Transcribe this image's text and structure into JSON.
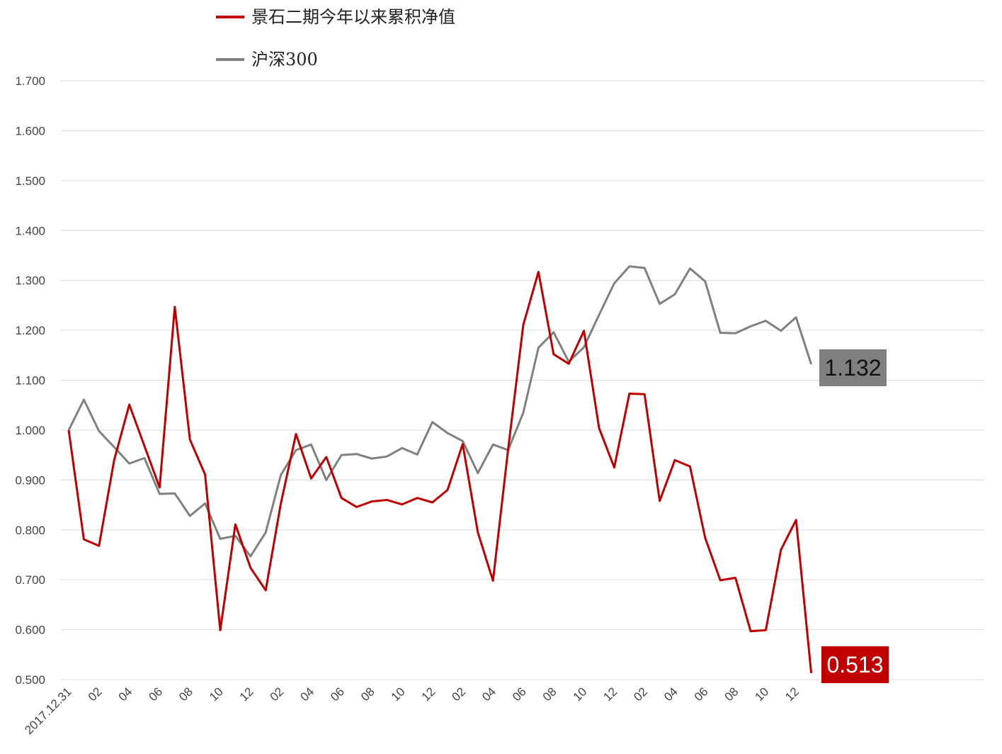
{
  "chart_data": {
    "type": "line",
    "title": "",
    "xlabel": "",
    "ylabel": "",
    "ylim": [
      0.5,
      1.7
    ],
    "yticks": [
      "0.500",
      "0.600",
      "0.700",
      "0.800",
      "0.900",
      "1.000",
      "1.100",
      "1.200",
      "1.300",
      "1.400",
      "1.500",
      "1.600",
      "1.700"
    ],
    "xtick_labels": [
      "2017.12.31",
      "02",
      "04",
      "06",
      "08",
      "10",
      "12",
      "02",
      "04",
      "06",
      "08",
      "10",
      "12",
      "02",
      "04",
      "06",
      "08",
      "10",
      "12",
      "02",
      "04",
      "06",
      "08",
      "10",
      "12"
    ],
    "grid": true,
    "legend_position": "top-left",
    "series": [
      {
        "name": "景石二期今年以来累积净值",
        "color": "#C00000",
        "values": [
          1.0,
          0.781,
          0.768,
          0.94,
          1.051,
          0.968,
          0.885,
          1.247,
          0.981,
          0.911,
          0.599,
          0.811,
          0.724,
          0.679,
          0.853,
          0.992,
          0.903,
          0.946,
          0.864,
          0.846,
          0.857,
          0.86,
          0.851,
          0.864,
          0.855,
          0.88,
          0.972,
          0.795,
          0.698,
          0.962,
          1.211,
          1.317,
          1.152,
          1.133,
          1.199,
          1.004,
          0.925,
          1.073,
          1.072,
          0.858,
          0.94,
          0.927,
          0.784,
          0.699,
          0.704,
          0.597,
          0.599,
          0.76,
          0.82,
          0.513
        ],
        "end_label": "0.513"
      },
      {
        "name": "沪深300",
        "color": "#808080",
        "values": [
          1.0,
          1.061,
          0.998,
          0.966,
          0.933,
          0.944,
          0.872,
          0.873,
          0.828,
          0.853,
          0.782,
          0.788,
          0.747,
          0.795,
          0.91,
          0.96,
          0.971,
          0.9,
          0.95,
          0.952,
          0.943,
          0.947,
          0.964,
          0.951,
          1.016,
          0.994,
          0.978,
          0.914,
          0.971,
          0.96,
          1.035,
          1.165,
          1.196,
          1.137,
          1.166,
          1.231,
          1.294,
          1.328,
          1.325,
          1.253,
          1.272,
          1.324,
          1.298,
          1.195,
          1.194,
          1.208,
          1.219,
          1.199,
          1.226,
          1.132
        ],
        "end_label": "1.132"
      }
    ]
  }
}
